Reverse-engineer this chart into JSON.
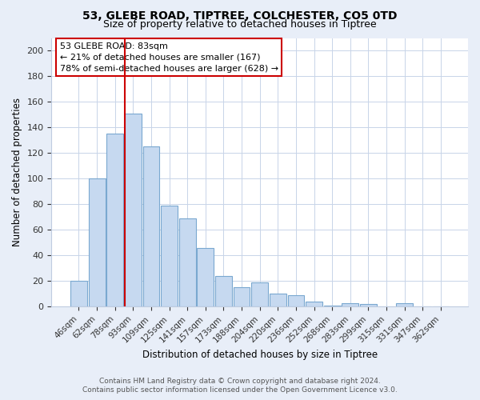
{
  "title1": "53, GLEBE ROAD, TIPTREE, COLCHESTER, CO5 0TD",
  "title2": "Size of property relative to detached houses in Tiptree",
  "xlabel": "Distribution of detached houses by size in Tiptree",
  "ylabel": "Number of detached properties",
  "bar_labels": [
    "46sqm",
    "62sqm",
    "78sqm",
    "93sqm",
    "109sqm",
    "125sqm",
    "141sqm",
    "157sqm",
    "173sqm",
    "188sqm",
    "204sqm",
    "220sqm",
    "236sqm",
    "252sqm",
    "268sqm",
    "283sqm",
    "299sqm",
    "315sqm",
    "331sqm",
    "347sqm",
    "362sqm"
  ],
  "bar_heights": [
    20,
    100,
    135,
    151,
    125,
    79,
    69,
    46,
    24,
    15,
    19,
    10,
    9,
    4,
    1,
    3,
    2,
    0,
    3,
    0,
    0
  ],
  "bar_color": "#c6d9f0",
  "bar_edge_color": "#7aa8d0",
  "vline_color": "#cc0000",
  "vline_x_index": 3,
  "annotation_title": "53 GLEBE ROAD: 83sqm",
  "annotation_line1": "← 21% of detached houses are smaller (167)",
  "annotation_line2": "78% of semi-detached houses are larger (628) →",
  "ylim": [
    0,
    210
  ],
  "yticks": [
    0,
    20,
    40,
    60,
    80,
    100,
    120,
    140,
    160,
    180,
    200
  ],
  "footer1": "Contains HM Land Registry data © Crown copyright and database right 2024.",
  "footer2": "Contains public sector information licensed under the Open Government Licence v3.0.",
  "bg_color": "#e8eef8",
  "plot_bg_color": "#ffffff",
  "title1_fontsize": 10,
  "title2_fontsize": 9,
  "annotation_fontsize": 8,
  "footer_fontsize": 6.5,
  "ylabel_fontsize": 8.5,
  "xlabel_fontsize": 8.5
}
